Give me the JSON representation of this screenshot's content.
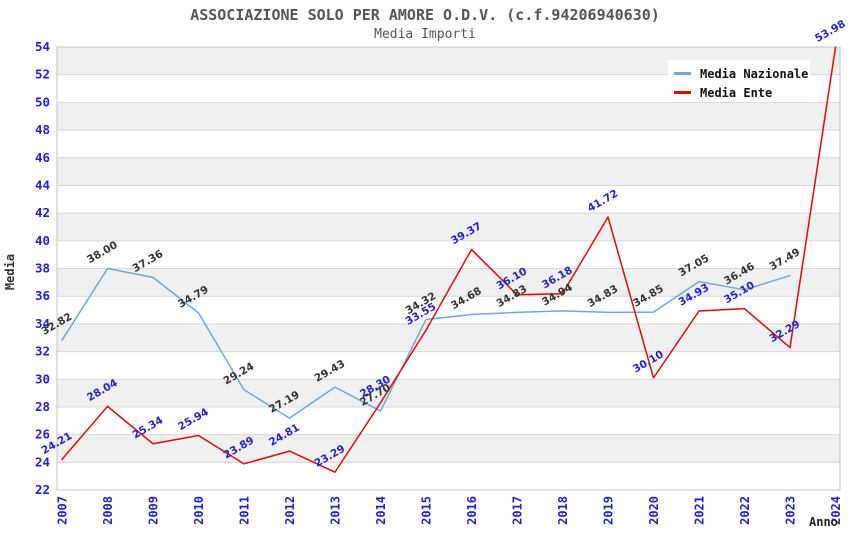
{
  "chart_data": {
    "type": "line",
    "title": "ASSOCIAZIONE SOLO PER AMORE O.D.V. (c.f.94206940630)",
    "subtitle": "Media Importi",
    "xlabel": "Anno",
    "ylabel": "Media",
    "x_categories": [
      "2007",
      "2008",
      "2009",
      "2010",
      "2011",
      "2012",
      "2013",
      "2014",
      "2015",
      "2016",
      "2017",
      "2018",
      "2019",
      "2020",
      "2021",
      "2022",
      "2023",
      "2024"
    ],
    "ylim": [
      22,
      54
    ],
    "ytick_step": 2,
    "grid": "horizontal-alternating-bands",
    "legend_position": "top-right",
    "series": [
      {
        "name": "Media Nazionale",
        "color": "#6FA8DC",
        "label_color": "#333333",
        "values": [
          32.82,
          38.0,
          37.36,
          34.79,
          29.24,
          27.19,
          29.43,
          27.7,
          34.32,
          34.68,
          34.83,
          34.94,
          34.83,
          34.85,
          37.05,
          36.46,
          37.49
        ]
      },
      {
        "name": "Media Ente",
        "color": "#E00A0A",
        "label_color": "#2222CC",
        "values": [
          24.21,
          28.04,
          25.34,
          25.94,
          23.89,
          24.81,
          23.29,
          28.3,
          33.55,
          39.37,
          36.1,
          36.18,
          41.72,
          30.1,
          34.93,
          35.1,
          32.29,
          53.98
        ]
      }
    ],
    "colors": {
      "band": "#F0F0F0",
      "gridline": "#D8D8D8",
      "plot_border": "#C4C4C4",
      "tick_label": "#2222CC",
      "title": "#555555"
    }
  }
}
